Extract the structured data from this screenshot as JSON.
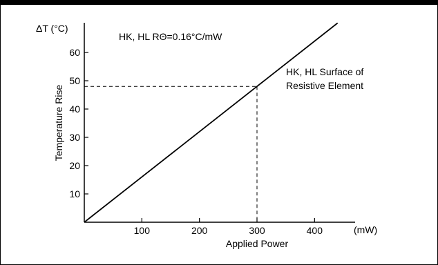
{
  "chart_data": {
    "type": "line",
    "y_unit_label": "ΔT (°C)",
    "ylabel": "Temperature Rise",
    "xlabel": "Applied Power",
    "x_unit_label": "(mW)",
    "xlim": [
      0,
      480
    ],
    "ylim": [
      0,
      70
    ],
    "x_ticks": [
      100,
      200,
      300,
      400
    ],
    "y_ticks": [
      10,
      20,
      30,
      40,
      50,
      60
    ],
    "grid": false,
    "series": [
      {
        "x": [
          0,
          440
        ],
        "y": [
          0,
          70.4
        ]
      }
    ],
    "reference_point": {
      "x": 300,
      "y": 48
    },
    "annotations": {
      "spec": "HK, HL  RΘ=0.16°C/mW",
      "surface_line1": "HK, HL Surface of",
      "surface_line2": "Resistive Element"
    },
    "colors": {
      "line": "#000000",
      "axis": "#000000",
      "background": "#ffffff"
    }
  }
}
